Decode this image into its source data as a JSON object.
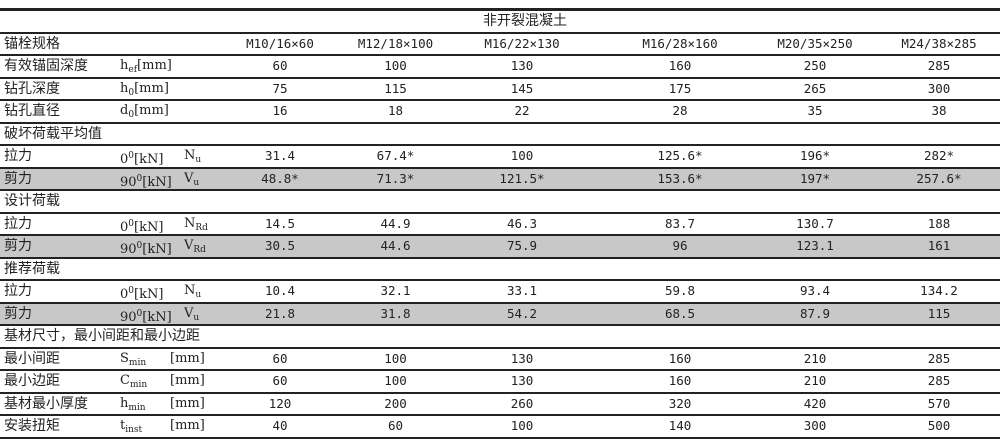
{
  "title": "非开裂混凝土",
  "header": {
    "label": "锚栓规格",
    "specs": [
      "M10/16×60",
      "M12/18×100",
      "M16/22×130",
      "M16/28×160",
      "M20/35×250",
      "M24/38×285"
    ]
  },
  "rows": [
    {
      "type": "data",
      "label": "有效锚固深度",
      "sym": {
        "b": "h",
        "sub": "ef",
        "unit": "[mm]"
      },
      "values": [
        "60",
        "100",
        "130",
        "160",
        "250",
        "285"
      ]
    },
    {
      "type": "data",
      "label": "钻孔深度",
      "sym": {
        "b": "h",
        "sub": "0",
        "unit": "[mm]"
      },
      "values": [
        "75",
        "115",
        "145",
        "175",
        "265",
        "300"
      ]
    },
    {
      "type": "data",
      "label": "钻孔直径",
      "sym": {
        "b": "d",
        "sub": "0",
        "unit": "[mm]"
      },
      "values": [
        "16",
        "18",
        "22",
        "28",
        "35",
        "38"
      ]
    },
    {
      "type": "section",
      "label": "破坏荷载平均值"
    },
    {
      "type": "load",
      "label": "拉力",
      "angle": "0",
      "angle_sup": "0",
      "unit": "[kN]",
      "s": "N",
      "ssub": "u",
      "values": [
        "31.4",
        "67.4*",
        "100",
        "125.6*",
        "196*",
        "282*"
      ]
    },
    {
      "type": "load",
      "shade": true,
      "label": "剪力",
      "angle": "90",
      "angle_sup": "0",
      "unit": "[kN]",
      "s": "V",
      "ssub": "u",
      "values": [
        "48.8*",
        "71.3*",
        "121.5*",
        "153.6*",
        "197*",
        "257.6*"
      ]
    },
    {
      "type": "section",
      "label": "设计荷载"
    },
    {
      "type": "load",
      "label": "拉力",
      "angle": "0",
      "angle_sup": "0",
      "unit": "[kN]",
      "s": "N",
      "ssub": "Rd",
      "values": [
        "14.5",
        "44.9",
        "46.3",
        "83.7",
        "130.7",
        "188"
      ]
    },
    {
      "type": "load",
      "shade": true,
      "label": "剪力",
      "angle": "90",
      "angle_sup": "0",
      "unit": "[kN]",
      "s": "V",
      "ssub": "Rd",
      "values": [
        "30.5",
        "44.6",
        "75.9",
        "96",
        "123.1",
        "161"
      ]
    },
    {
      "type": "section",
      "label": "推荐荷载"
    },
    {
      "type": "load",
      "label": "拉力",
      "angle": "0",
      "angle_sup": "0",
      "unit": "[kN]",
      "s": "N",
      "ssub": "u",
      "values": [
        "10.4",
        "32.1",
        "33.1",
        "59.8",
        "93.4",
        "134.2"
      ]
    },
    {
      "type": "load",
      "shade": true,
      "label": "剪力",
      "angle": "90",
      "angle_sup": "0",
      "unit": "[kN]",
      "s": "V",
      "ssub": "u",
      "values": [
        "21.8",
        "31.8",
        "54.2",
        "68.5",
        "87.9",
        "115"
      ]
    },
    {
      "type": "section",
      "label": "基材尺寸，最小间距和最小边距"
    },
    {
      "type": "data2",
      "label": "最小间距",
      "sym": {
        "b": "S",
        "sub": "min",
        "unit": "[mm]"
      },
      "values": [
        "60",
        "100",
        "130",
        "160",
        "210",
        "285"
      ]
    },
    {
      "type": "data2",
      "label": "最小边距",
      "sym": {
        "b": "C",
        "sub": "min",
        "unit": "[mm]"
      },
      "values": [
        "60",
        "100",
        "130",
        "160",
        "210",
        "285"
      ]
    },
    {
      "type": "data2",
      "label": "基材最小厚度",
      "sym": {
        "b": "h",
        "sub": "min",
        "unit": "[mm]"
      },
      "values": [
        "120",
        "200",
        "260",
        "320",
        "420",
        "570"
      ]
    },
    {
      "type": "data2",
      "label": "安装扭矩",
      "sym": {
        "b": "t",
        "sub": "inst",
        "unit": "[mm]"
      },
      "values": [
        "40",
        "60",
        "100",
        "140",
        "300",
        "500"
      ]
    }
  ]
}
